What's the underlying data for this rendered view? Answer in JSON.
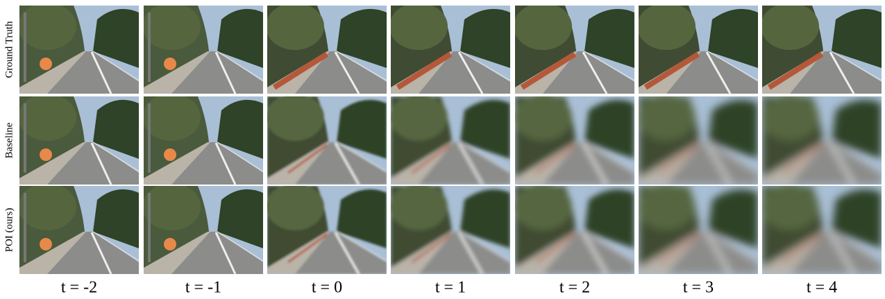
{
  "row_labels": [
    "Ground Truth",
    "Baseline",
    "POI (ours)"
  ],
  "column_labels": [
    "t = -2",
    "t = -1",
    "t = 0",
    "t = 1",
    "t = 2",
    "t = 3",
    "t = 4"
  ]
}
